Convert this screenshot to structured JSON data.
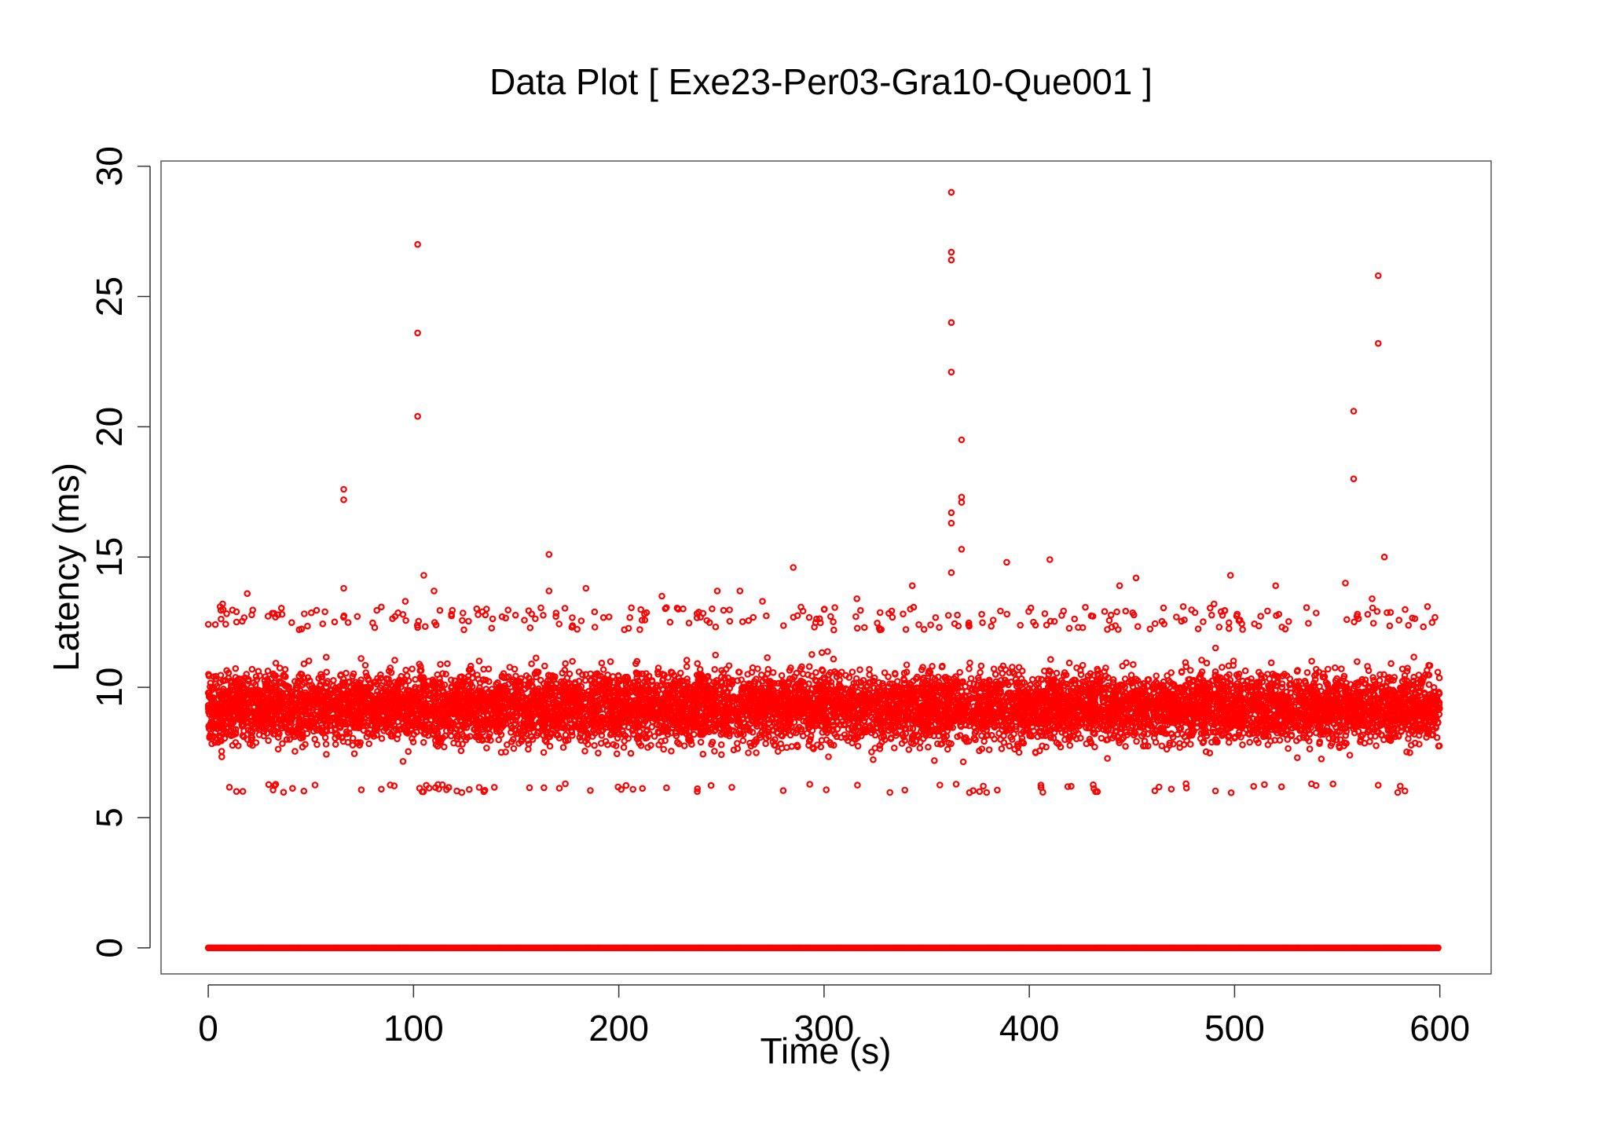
{
  "chart_data": {
    "type": "scatter",
    "title": "Data Plot [ Exe23-Per03-Gra10-Que001 ]",
    "xlabel": "Time (s)",
    "ylabel": "Latency (ms)",
    "xlim": [
      -23,
      625
    ],
    "ylim": [
      -1,
      30.2
    ],
    "x_ticks": [
      0,
      100,
      200,
      300,
      400,
      500,
      600
    ],
    "y_ticks": [
      0,
      5,
      10,
      15,
      20,
      25,
      30
    ],
    "x_tick_labels": [
      "0",
      "100",
      "200",
      "300",
      "400",
      "500",
      "600"
    ],
    "y_tick_labels": [
      "0",
      "5",
      "10",
      "15",
      "20",
      "25",
      "30"
    ],
    "marker": "open-circle",
    "color": "#ff0000",
    "grid": false,
    "legend": "none",
    "series": [
      {
        "description_of_bulk": "dense band of points across the full time span",
        "x_range": [
          0,
          600
        ],
        "y_range": [
          6.3,
          12.2
        ],
        "zero_line": {
          "x_range": [
            0,
            600
          ],
          "y": 0
        },
        "outliers": [
          {
            "x": 102,
            "y": 27.0
          },
          {
            "x": 102,
            "y": 23.6
          },
          {
            "x": 102,
            "y": 20.4
          },
          {
            "x": 105,
            "y": 14.3
          },
          {
            "x": 66,
            "y": 17.6
          },
          {
            "x": 66,
            "y": 17.2
          },
          {
            "x": 66,
            "y": 13.8
          },
          {
            "x": 166,
            "y": 15.1
          },
          {
            "x": 166,
            "y": 13.7
          },
          {
            "x": 184,
            "y": 13.8
          },
          {
            "x": 285,
            "y": 14.6
          },
          {
            "x": 343,
            "y": 13.9
          },
          {
            "x": 362,
            "y": 29.0
          },
          {
            "x": 362,
            "y": 26.7
          },
          {
            "x": 362,
            "y": 26.4
          },
          {
            "x": 362,
            "y": 24.0
          },
          {
            "x": 362,
            "y": 22.1
          },
          {
            "x": 367,
            "y": 19.5
          },
          {
            "x": 367,
            "y": 17.3
          },
          {
            "x": 367,
            "y": 17.1
          },
          {
            "x": 362,
            "y": 16.7
          },
          {
            "x": 362,
            "y": 16.3
          },
          {
            "x": 367,
            "y": 15.3
          },
          {
            "x": 362,
            "y": 14.4
          },
          {
            "x": 389,
            "y": 14.8
          },
          {
            "x": 410,
            "y": 14.9
          },
          {
            "x": 452,
            "y": 14.2
          },
          {
            "x": 498,
            "y": 14.3
          },
          {
            "x": 520,
            "y": 13.9
          },
          {
            "x": 554,
            "y": 14.0
          },
          {
            "x": 558,
            "y": 20.6
          },
          {
            "x": 558,
            "y": 18.0
          },
          {
            "x": 570,
            "y": 25.8
          },
          {
            "x": 570,
            "y": 23.2
          },
          {
            "x": 573,
            "y": 15.0
          },
          {
            "x": 19,
            "y": 13.6
          },
          {
            "x": 7,
            "y": 13.2
          },
          {
            "x": 270,
            "y": 13.3
          },
          {
            "x": 316,
            "y": 13.4
          },
          {
            "x": 444,
            "y": 13.9
          },
          {
            "x": 475,
            "y": 13.1
          },
          {
            "x": 490,
            "y": 13.2
          },
          {
            "x": 594,
            "y": 13.1
          },
          {
            "x": 567,
            "y": 13.4
          },
          {
            "x": 248,
            "y": 13.7
          },
          {
            "x": 259,
            "y": 13.7
          },
          {
            "x": 221,
            "y": 13.5
          },
          {
            "x": 229,
            "y": 13.0
          },
          {
            "x": 110,
            "y": 13.7
          },
          {
            "x": 96,
            "y": 13.3
          }
        ]
      }
    ]
  }
}
